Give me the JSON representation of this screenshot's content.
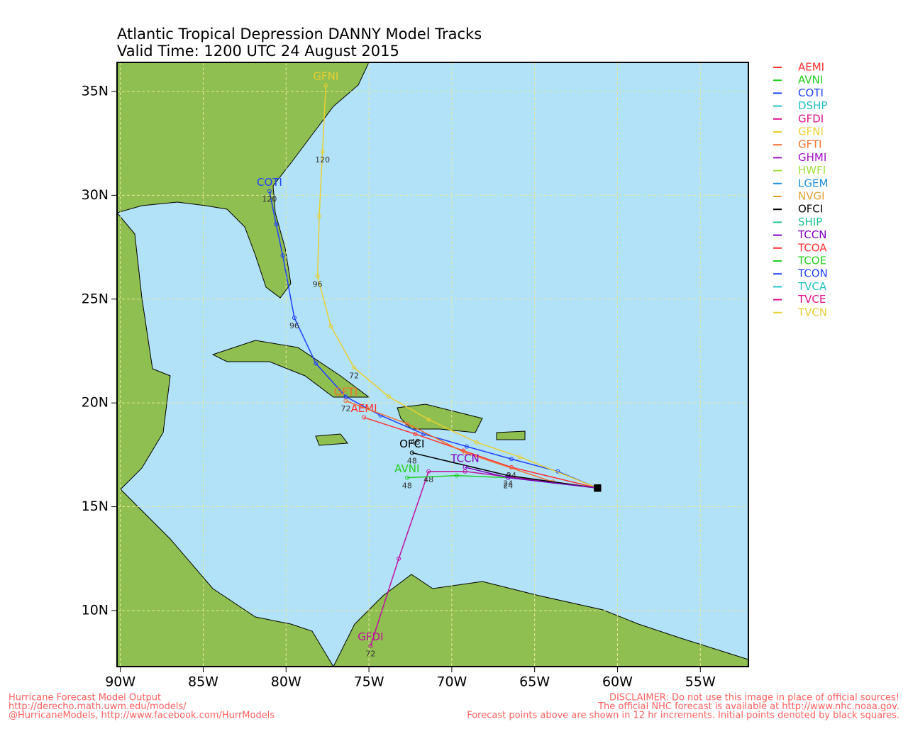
{
  "map": {
    "title": "Atlantic Tropical Depression DANNY Model Tracks",
    "subtitle": "Valid Time: 1200 UTC 24 August 2015",
    "xlim": [
      -90.2,
      -52.1
    ],
    "ylim": [
      7.3,
      36.4
    ],
    "xticks": [
      {
        "value": -90,
        "label": "90W"
      },
      {
        "value": -85,
        "label": "85W"
      },
      {
        "value": -80,
        "label": "80W"
      },
      {
        "value": -75,
        "label": "75W"
      },
      {
        "value": -70,
        "label": "70W"
      },
      {
        "value": -65,
        "label": "65W"
      },
      {
        "value": -60,
        "label": "60W"
      },
      {
        "value": -55,
        "label": "55W"
      }
    ],
    "yticks": [
      {
        "value": 10,
        "label": "10N"
      },
      {
        "value": 15,
        "label": "15N"
      },
      {
        "value": 20,
        "label": "20N"
      },
      {
        "value": 25,
        "label": "25N"
      },
      {
        "value": 30,
        "label": "30N"
      },
      {
        "value": 35,
        "label": "35N"
      }
    ],
    "grid": true,
    "legend": [
      {
        "name": "AEMI",
        "color": "#ff3030"
      },
      {
        "name": "AVNI",
        "color": "#20d020"
      },
      {
        "name": "COTI",
        "color": "#2040ff"
      },
      {
        "name": "DSHP",
        "color": "#20c0c0"
      },
      {
        "name": "GFDI",
        "color": "#e0108a"
      },
      {
        "name": "GFNI",
        "color": "#e8d030"
      },
      {
        "name": "GFTI",
        "color": "#f07030"
      },
      {
        "name": "GHMI",
        "color": "#a010c0"
      },
      {
        "name": "HWFI",
        "color": "#a0e040"
      },
      {
        "name": "LGEM",
        "color": "#2090e0"
      },
      {
        "name": "NVGI",
        "color": "#e0a030"
      },
      {
        "name": "OFCI",
        "color": "#000000"
      },
      {
        "name": "SHIP",
        "color": "#20c090"
      },
      {
        "name": "TCCN",
        "color": "#8000c0"
      },
      {
        "name": "TCOA",
        "color": "#ff3030"
      },
      {
        "name": "TCOE",
        "color": "#20d020"
      },
      {
        "name": "TCON",
        "color": "#2040ff"
      },
      {
        "name": "TVCA",
        "color": "#20c0c0"
      },
      {
        "name": "TVCE",
        "color": "#e0108a"
      },
      {
        "name": "TVCN",
        "color": "#e8d030"
      }
    ],
    "tracks": [
      {
        "name": "COTI",
        "color": "#2040ff",
        "lon": [
          -61.2,
          -63.6,
          -66.4,
          -69.1,
          -71.7,
          -74.3,
          -76.4,
          -78.2,
          -79.5,
          -80.2,
          -80.6,
          -81.0
        ],
        "lat": [
          15.9,
          16.7,
          17.3,
          17.9,
          18.5,
          19.4,
          20.3,
          21.9,
          24.1,
          27.1,
          28.6,
          30.2
        ],
        "point_labels": [
          null,
          null,
          null,
          null,
          null,
          null,
          null,
          null,
          96,
          null,
          null,
          120
        ]
      },
      {
        "name": "GFNI",
        "color": "#e8d030",
        "lon": [
          -61.2,
          -65.9,
          -68.5,
          -71.4,
          -73.8,
          -75.9,
          -77.3,
          -78.1,
          -78.0,
          -77.8,
          -77.6
        ],
        "lat": [
          15.9,
          17.4,
          18.1,
          19.2,
          20.3,
          21.7,
          23.7,
          26.1,
          29.0,
          32.1,
          35.3
        ],
        "point_labels": [
          null,
          null,
          null,
          null,
          null,
          72,
          null,
          96,
          null,
          120,
          null
        ]
      },
      {
        "name": "GFDI",
        "color": "#c010a0",
        "lon": [
          -61.2,
          -69.2,
          -71.4,
          -73.2,
          -74.9
        ],
        "lat": [
          15.9,
          16.7,
          16.7,
          12.5,
          8.3
        ],
        "point_labels": [
          null,
          null,
          48,
          null,
          72
        ]
      },
      {
        "name": "AEMI",
        "color": "#ff3030",
        "lon": [
          -61.2,
          -66.4,
          -69.3,
          -72.2,
          -75.3
        ],
        "lat": [
          15.9,
          16.9,
          17.7,
          18.5,
          19.3
        ],
        "point_labels": [
          null,
          24,
          null,
          48,
          null
        ]
      },
      {
        "name": "GFTI",
        "color": "#f07030",
        "lon": [
          -61.2,
          -63.9,
          -69.2,
          -72.7,
          -76.4
        ],
        "lat": [
          15.9,
          16.2,
          17.6,
          19.0,
          20.1
        ],
        "point_labels": [
          null,
          null,
          null,
          null,
          72
        ]
      },
      {
        "name": "OFCI",
        "color": "#000000",
        "lon": [
          -61.2,
          -66.6,
          -72.4
        ],
        "lat": [
          15.9,
          16.5,
          17.6
        ],
        "point_labels": [
          null,
          24,
          48
        ]
      },
      {
        "name": "AVNI",
        "color": "#20d020",
        "lon": [
          -61.2,
          -66.6,
          -69.7,
          -72.7
        ],
        "lat": [
          15.9,
          16.4,
          16.5,
          16.4
        ],
        "point_labels": [
          null,
          24,
          null,
          48
        ]
      },
      {
        "name": "TCCN",
        "color": "#8000c0",
        "lon": [
          -61.2,
          -66.6,
          -69.2
        ],
        "lat": [
          15.9,
          16.4,
          16.9
        ],
        "point_labels": [
          null,
          null,
          null
        ]
      }
    ]
  },
  "footer": {
    "left": [
      "Hurricane Forecast Model Output",
      "http://derecho.math.uwm.edu/models/",
      "@HurricaneModels, http://www.facebook.com/HurrModels"
    ],
    "right": [
      "DISCLAIMER: Do not use this image in place of official sources!",
      "The official NHC forecast is available at http://www.nhc.noaa.gov.",
      "Forecast points above are shown in 12 hr increments. Initial points denoted by black squares."
    ]
  }
}
